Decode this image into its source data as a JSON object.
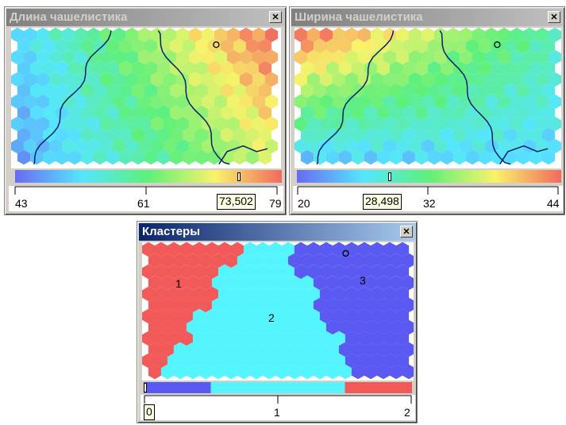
{
  "windows": {
    "length": {
      "title": "Длина чашелистика",
      "scale_ticks": [
        "43",
        "61",
        "79"
      ],
      "readout": "73,502",
      "marker_fraction": 0.84,
      "high_corner": "right",
      "colors": [
        "#6a6af0",
        "#55e6ff",
        "#5ff07a",
        "#f8f36a",
        "#f26a5e"
      ]
    },
    "width": {
      "title": "Ширина чашелистика",
      "scale_ticks": [
        "20",
        "32",
        "44"
      ],
      "readout": "28,498",
      "marker_fraction": 0.35,
      "high_corner": "left",
      "colors": [
        "#6a6af0",
        "#55e6ff",
        "#5ff07a",
        "#f8f36a",
        "#f26a5e"
      ]
    },
    "clusters": {
      "title": "Кластеры",
      "labels": [
        "1",
        "2",
        "3"
      ],
      "scale_ticks": [
        "0",
        "1",
        "2"
      ],
      "readout": "0",
      "segment_colors": [
        "#5a5af2",
        "#55f5ff",
        "#f25a5a"
      ]
    }
  },
  "close_glyph": "✕"
}
